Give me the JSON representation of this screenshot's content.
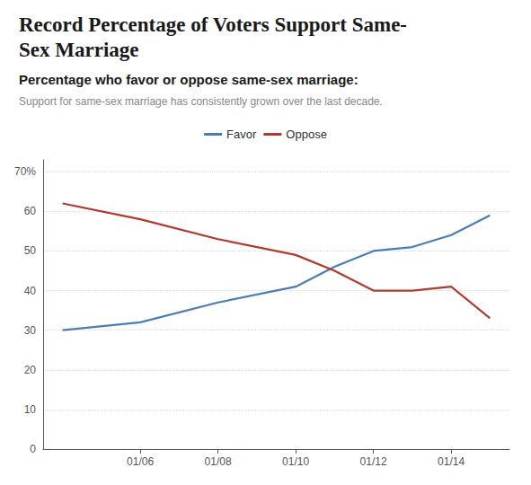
{
  "chart_data": {
    "type": "line",
    "title": "Record Percentage of Voters Support Same-\nSex Marriage",
    "subtitle": "Percentage who favor or oppose same-sex marriage:",
    "caption": "Support for same-sex marriage has consistently grown over the last decade.",
    "x": [
      2004,
      2006,
      2008,
      2010,
      2011,
      2012,
      2013,
      2014,
      2015
    ],
    "series": [
      {
        "name": "Favor",
        "color": "#4a7db5",
        "values": [
          30,
          32,
          37,
          41,
          46,
          50,
          51,
          54,
          59
        ]
      },
      {
        "name": "Oppose",
        "color": "#b03a2e",
        "values": [
          62,
          58,
          53,
          49,
          45,
          40,
          40,
          41,
          33
        ]
      }
    ],
    "xlim": [
      2003.5,
      2015.5
    ],
    "xticks": [
      {
        "value": 2006,
        "label": "01/06"
      },
      {
        "value": 2008,
        "label": "01/08"
      },
      {
        "value": 2010,
        "label": "01/10"
      },
      {
        "value": 2012,
        "label": "01/12"
      },
      {
        "value": 2014,
        "label": "01/14"
      }
    ],
    "ylim": [
      0,
      73
    ],
    "yticks": [
      0,
      10,
      20,
      30,
      40,
      50,
      60,
      {
        "value": 70,
        "label": "70%"
      }
    ],
    "grid": true,
    "legend": "top"
  }
}
